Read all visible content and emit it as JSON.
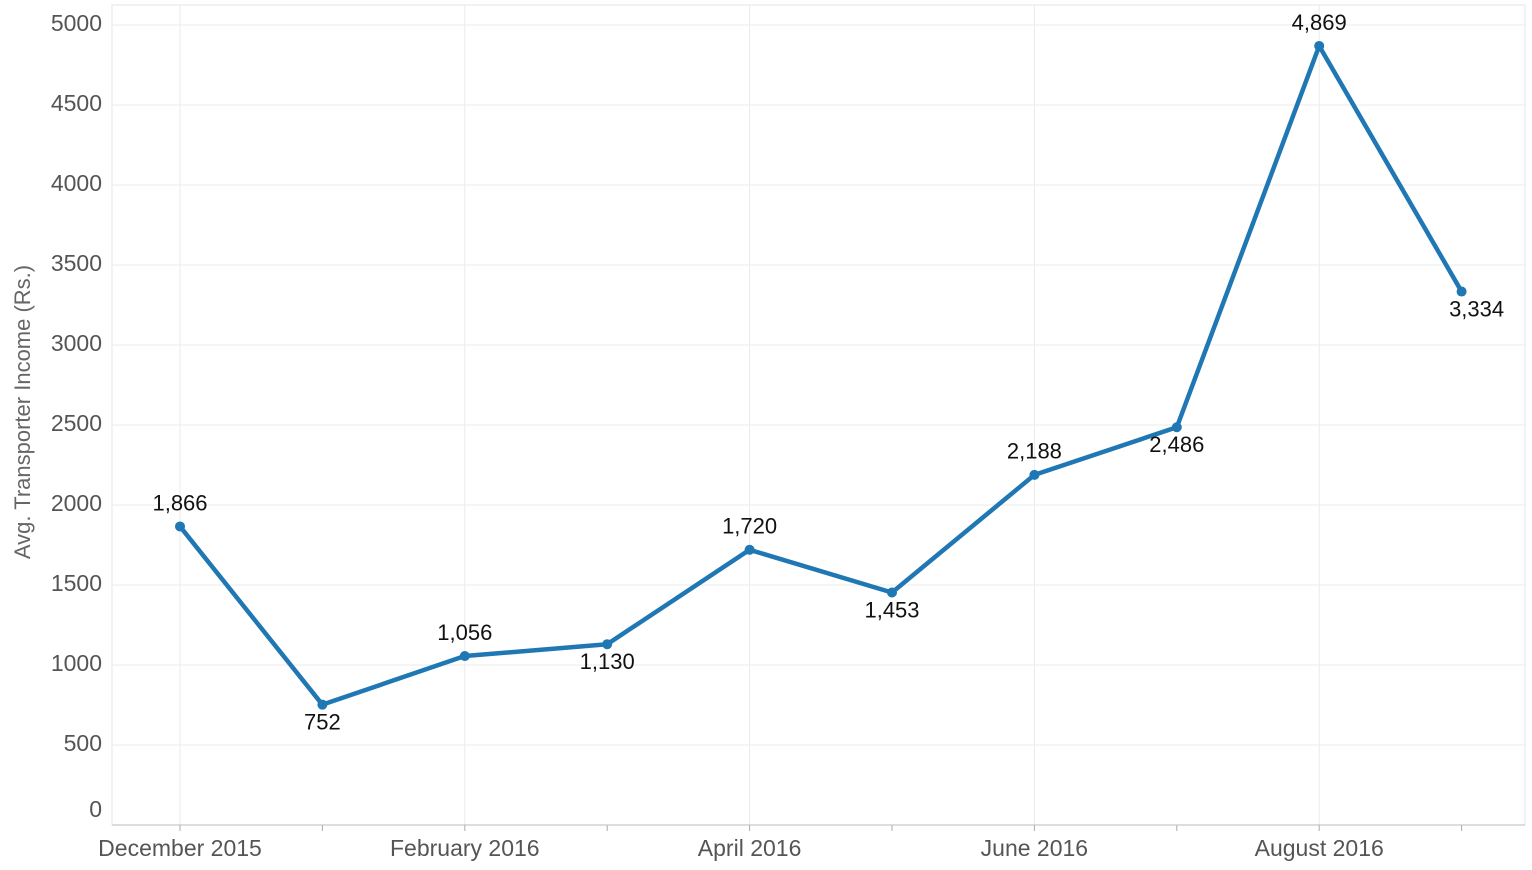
{
  "chart_data": {
    "type": "line",
    "y_label": "Avg. Transporter Income (Rs.)",
    "categories": [
      "December 2015",
      null,
      "February 2016",
      null,
      "April 2016",
      null,
      "June 2016",
      null,
      "August 2016",
      null
    ],
    "series": [
      {
        "name": "Avg. Transporter Income",
        "color": "#1f77b4",
        "values": [
          1866,
          752,
          1056,
          1130,
          1720,
          1453,
          2188,
          2486,
          4869,
          3334
        ],
        "value_labels": [
          "1,866",
          "752",
          "1,056",
          "1,130",
          "1,720",
          "1,453",
          "2,188",
          "2,486",
          "4,869",
          "3,334"
        ]
      }
    ],
    "ylim": [
      0,
      5000
    ],
    "yticks": [
      0,
      500,
      1000,
      1500,
      2000,
      2500,
      3000,
      3500,
      4000,
      4500,
      5000
    ],
    "grid": true
  }
}
